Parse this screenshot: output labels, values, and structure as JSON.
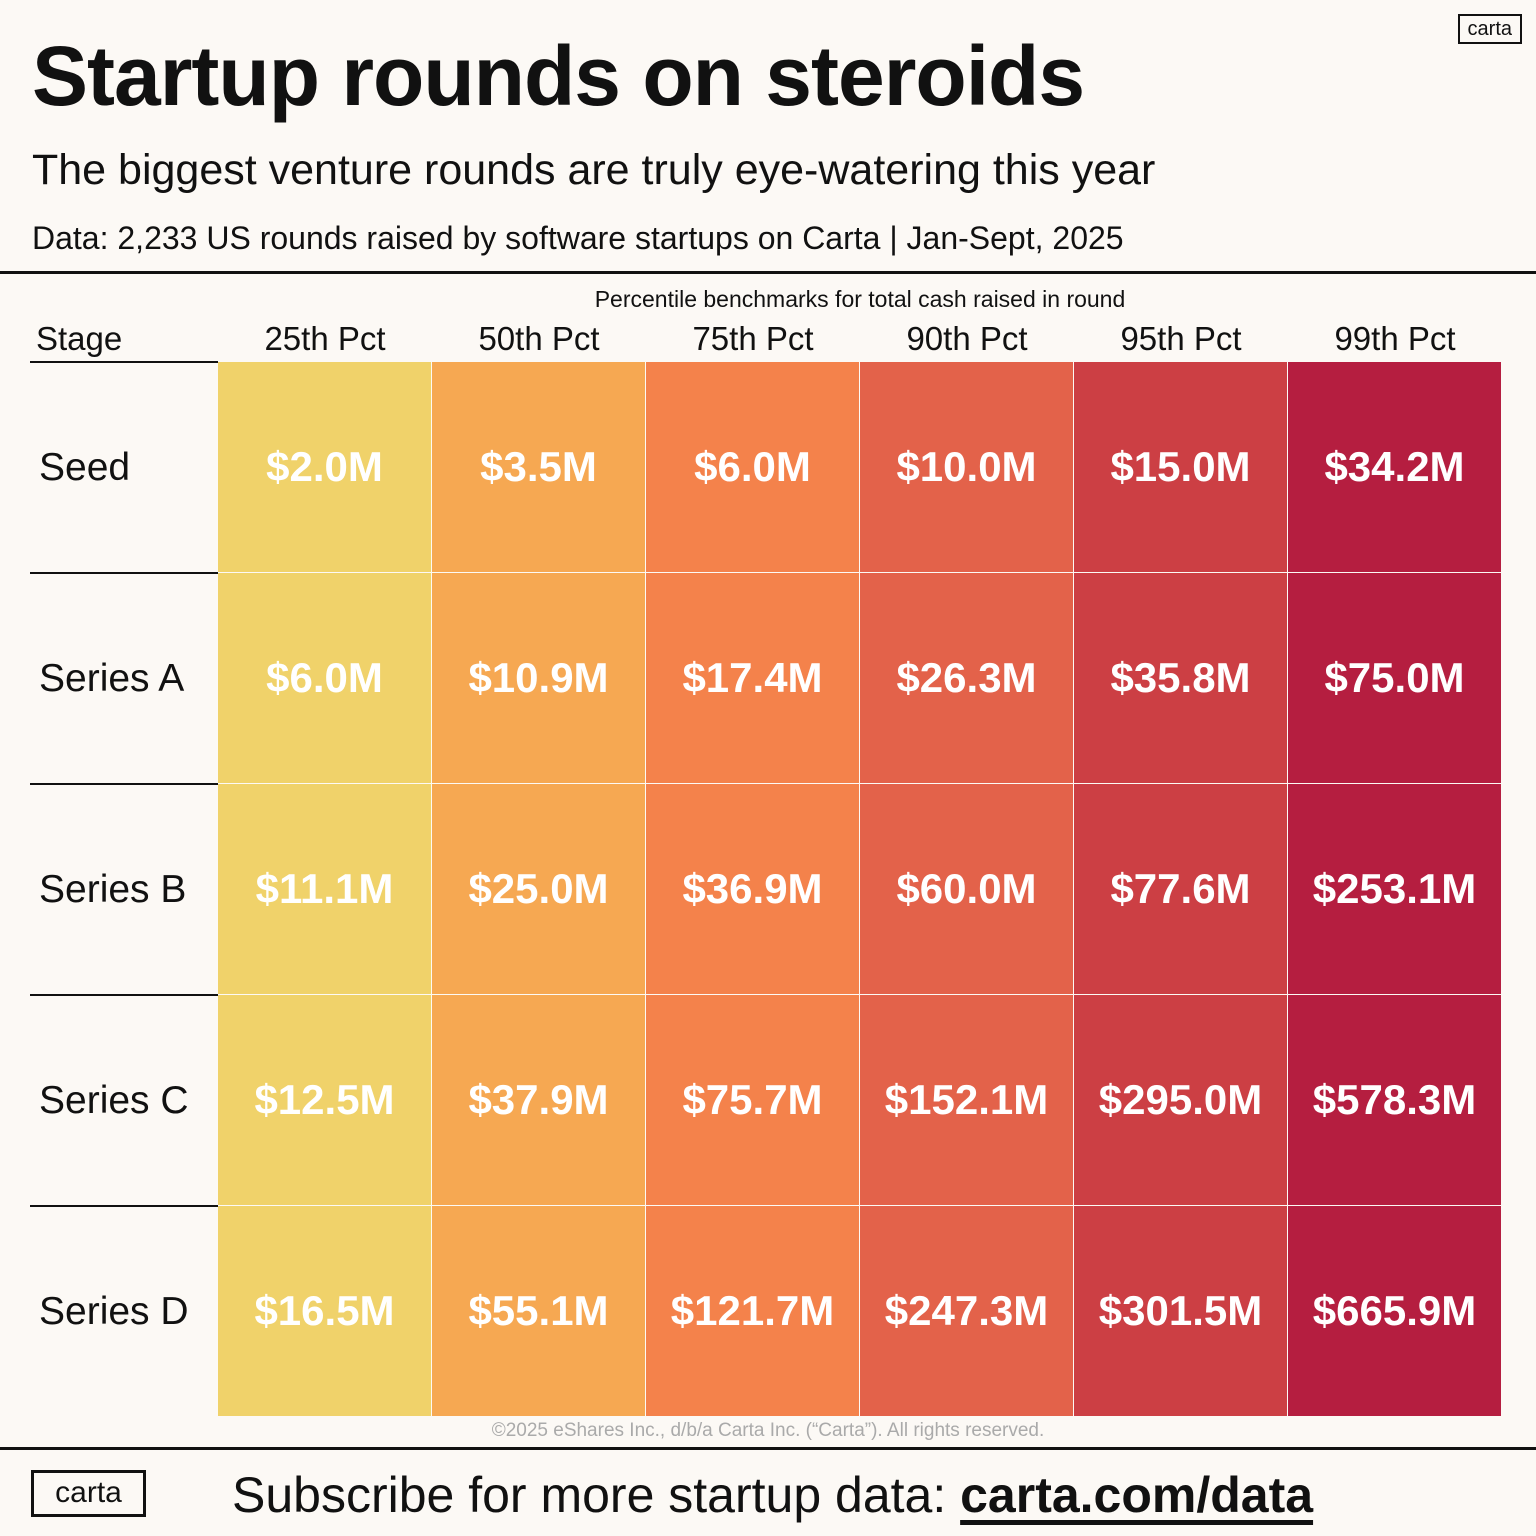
{
  "header": {
    "title": "Startup rounds on steroids",
    "subtitle": "The biggest venture rounds are truly eye-watering this year",
    "source": "Data: 2,233 US rounds raised by software startups on Carta | Jan-Sept, 2025",
    "logo": "carta"
  },
  "chart_data": {
    "type": "heatmap",
    "caption": "Percentile benchmarks for total cash raised in round",
    "row_header": "Stage",
    "columns": [
      "25th Pct",
      "50th Pct",
      "75th Pct",
      "90th Pct",
      "95th Pct",
      "99th Pct"
    ],
    "column_colors": [
      "#f0d26a",
      "#f6a852",
      "#f4824b",
      "#e3624a",
      "#cc3f44",
      "#b51e40"
    ],
    "rows": [
      "Seed",
      "Series A",
      "Series B",
      "Series C",
      "Series D"
    ],
    "values": [
      [
        "$2.0M",
        "$3.5M",
        "$6.0M",
        "$10.0M",
        "$15.0M",
        "$34.2M"
      ],
      [
        "$6.0M",
        "$10.9M",
        "$17.4M",
        "$26.3M",
        "$35.8M",
        "$75.0M"
      ],
      [
        "$11.1M",
        "$25.0M",
        "$36.9M",
        "$60.0M",
        "$77.6M",
        "$253.1M"
      ],
      [
        "$12.5M",
        "$37.9M",
        "$75.7M",
        "$152.1M",
        "$295.0M",
        "$578.3M"
      ],
      [
        "$16.5M",
        "$55.1M",
        "$121.7M",
        "$247.3M",
        "$301.5M",
        "$665.9M"
      ]
    ],
    "unit": "USD millions"
  },
  "footer": {
    "copyright": "©2025 eShares Inc., d/b/a Carta Inc. (“Carta”). All rights reserved.",
    "logo": "carta",
    "cta": "Subscribe for more startup data: ",
    "link": "carta.com/data"
  }
}
